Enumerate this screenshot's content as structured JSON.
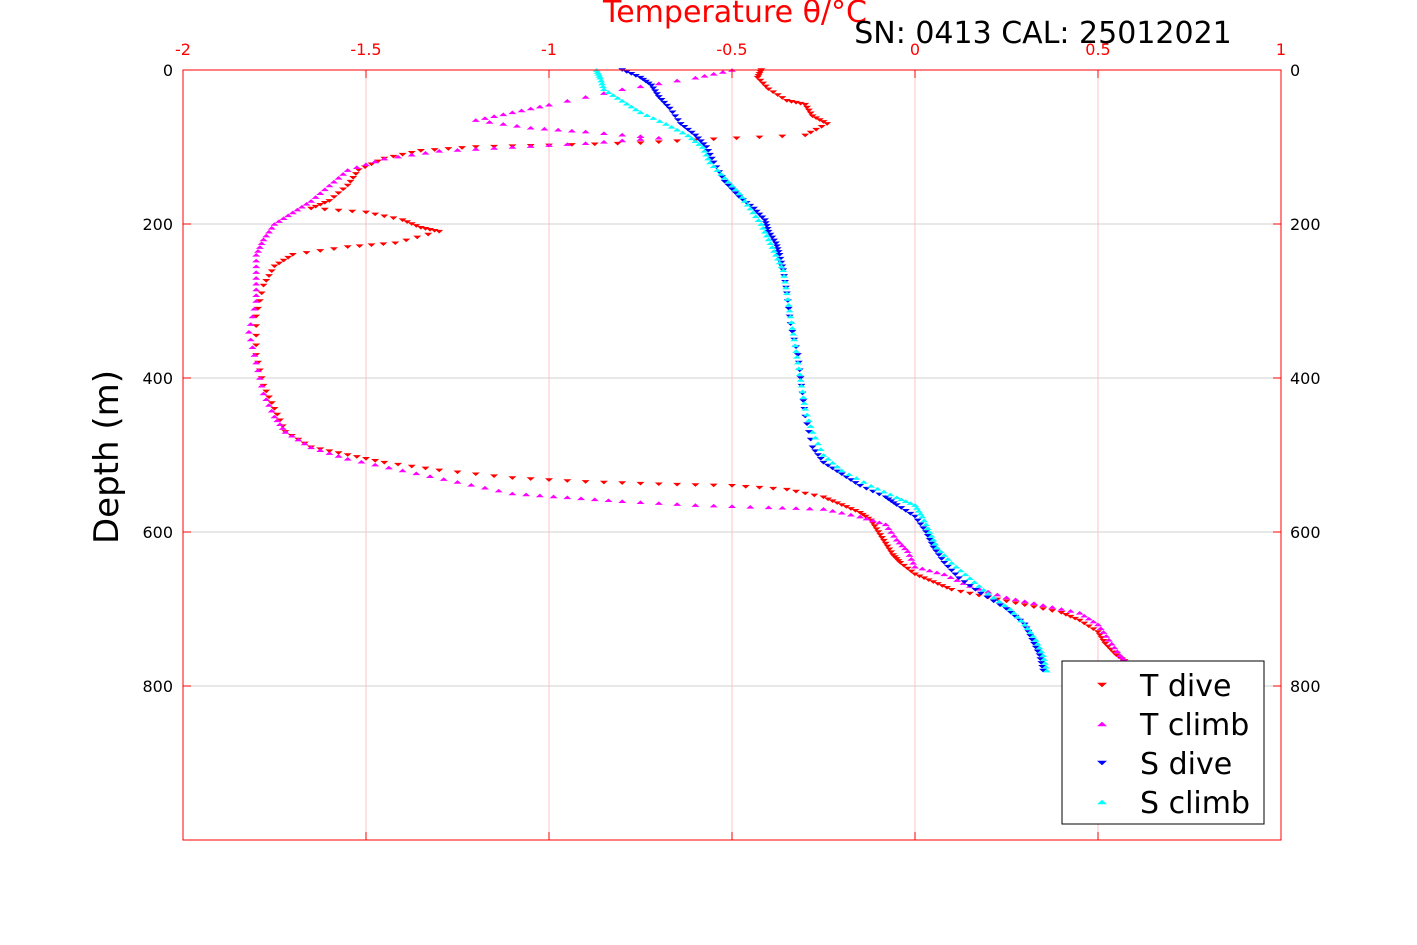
{
  "chart_data": {
    "type": "scatter",
    "title": "Temperature θ/°C",
    "subtitle": "SN: 0413  CAL: 25012021",
    "xlabel": "Temperature θ/°C",
    "ylabel": "Depth (m)",
    "xlim": [
      -2,
      1
    ],
    "ylim": [
      0,
      1000
    ],
    "y_reversed": true,
    "x_axis_position": "top",
    "x_ticks": [
      "-2",
      "-1.5",
      "-1",
      "-0.5",
      "0",
      "0.5",
      "1"
    ],
    "y_ticks": [
      "0",
      "200",
      "400",
      "600",
      "800"
    ],
    "grid": true,
    "legend": "bottom-right",
    "colors": {
      "axes": "#ff0000",
      "grid": "#d0d0d0",
      "grid_x": "#ffc0cb"
    },
    "series": [
      {
        "name": "T dive",
        "marker": "triangle-down",
        "color": "#ff0000",
        "points": [
          [
            -0.42,
            0
          ],
          [
            -0.43,
            10
          ],
          [
            -0.4,
            25
          ],
          [
            -0.35,
            40
          ],
          [
            -0.3,
            45
          ],
          [
            -0.28,
            60
          ],
          [
            -0.24,
            70
          ],
          [
            -0.3,
            85
          ],
          [
            -0.55,
            90
          ],
          [
            -0.75,
            95
          ],
          [
            -1.0,
            98
          ],
          [
            -1.2,
            100
          ],
          [
            -1.35,
            105
          ],
          [
            -1.45,
            115
          ],
          [
            -1.52,
            130
          ],
          [
            -1.55,
            150
          ],
          [
            -1.6,
            170
          ],
          [
            -1.65,
            180
          ],
          [
            -1.5,
            185
          ],
          [
            -1.4,
            195
          ],
          [
            -1.35,
            205
          ],
          [
            -1.3,
            210
          ],
          [
            -1.42,
            225
          ],
          [
            -1.55,
            230
          ],
          [
            -1.7,
            240
          ],
          [
            -1.75,
            255
          ],
          [
            -1.78,
            280
          ],
          [
            -1.8,
            320
          ],
          [
            -1.8,
            370
          ],
          [
            -1.78,
            410
          ],
          [
            -1.75,
            440
          ],
          [
            -1.72,
            470
          ],
          [
            -1.65,
            490
          ],
          [
            -1.55,
            500
          ],
          [
            -1.45,
            510
          ],
          [
            -1.3,
            520
          ],
          [
            -1.1,
            530
          ],
          [
            -0.9,
            535
          ],
          [
            -0.7,
            538
          ],
          [
            -0.5,
            540
          ],
          [
            -0.35,
            545
          ],
          [
            -0.25,
            555
          ],
          [
            -0.2,
            565
          ],
          [
            -0.15,
            575
          ],
          [
            -0.12,
            585
          ],
          [
            -0.1,
            600
          ],
          [
            -0.08,
            615
          ],
          [
            -0.06,
            630
          ],
          [
            -0.04,
            640
          ],
          [
            0.0,
            655
          ],
          [
            0.05,
            665
          ],
          [
            0.1,
            675
          ],
          [
            0.2,
            685
          ],
          [
            0.3,
            695
          ],
          [
            0.4,
            705
          ],
          [
            0.45,
            715
          ],
          [
            0.5,
            730
          ],
          [
            0.52,
            745
          ],
          [
            0.55,
            760
          ],
          [
            0.58,
            770
          ]
        ]
      },
      {
        "name": "T climb",
        "marker": "triangle-up",
        "color": "#ff00ff",
        "points": [
          [
            -0.5,
            0
          ],
          [
            -0.6,
            10
          ],
          [
            -0.8,
            25
          ],
          [
            -1.0,
            45
          ],
          [
            -1.1,
            55
          ],
          [
            -1.2,
            65
          ],
          [
            -1.05,
            75
          ],
          [
            -0.9,
            80
          ],
          [
            -0.7,
            88
          ],
          [
            -0.9,
            95
          ],
          [
            -1.1,
            100
          ],
          [
            -1.3,
            105
          ],
          [
            -1.45,
            115
          ],
          [
            -1.55,
            130
          ],
          [
            -1.6,
            150
          ],
          [
            -1.65,
            170
          ],
          [
            -1.7,
            185
          ],
          [
            -1.75,
            200
          ],
          [
            -1.78,
            220
          ],
          [
            -1.8,
            240
          ],
          [
            -1.8,
            270
          ],
          [
            -1.8,
            300
          ],
          [
            -1.82,
            340
          ],
          [
            -1.8,
            380
          ],
          [
            -1.78,
            420
          ],
          [
            -1.75,
            450
          ],
          [
            -1.72,
            470
          ],
          [
            -1.65,
            490
          ],
          [
            -1.55,
            505
          ],
          [
            -1.4,
            520
          ],
          [
            -1.25,
            535
          ],
          [
            -1.1,
            550
          ],
          [
            -0.95,
            555
          ],
          [
            -0.8,
            560
          ],
          [
            -0.6,
            565
          ],
          [
            -0.4,
            568
          ],
          [
            -0.25,
            570
          ],
          [
            -0.15,
            580
          ],
          [
            -0.08,
            590
          ],
          [
            -0.05,
            610
          ],
          [
            -0.02,
            625
          ],
          [
            0.0,
            645
          ],
          [
            0.08,
            655
          ],
          [
            0.15,
            670
          ],
          [
            0.25,
            685
          ],
          [
            0.35,
            695
          ],
          [
            0.45,
            705
          ],
          [
            0.5,
            720
          ],
          [
            0.53,
            740
          ],
          [
            0.56,
            760
          ],
          [
            0.58,
            770
          ]
        ]
      },
      {
        "name": "S dive",
        "marker": "triangle-down",
        "color": "#0000ff",
        "points": [
          [
            -0.8,
            0
          ],
          [
            -0.75,
            10
          ],
          [
            -0.72,
            20
          ],
          [
            -0.7,
            35
          ],
          [
            -0.67,
            50
          ],
          [
            -0.64,
            70
          ],
          [
            -0.6,
            85
          ],
          [
            -0.57,
            100
          ],
          [
            -0.55,
            120
          ],
          [
            -0.52,
            145
          ],
          [
            -0.48,
            165
          ],
          [
            -0.44,
            180
          ],
          [
            -0.41,
            195
          ],
          [
            -0.4,
            210
          ],
          [
            -0.38,
            225
          ],
          [
            -0.37,
            240
          ],
          [
            -0.36,
            260
          ],
          [
            -0.35,
            290
          ],
          [
            -0.34,
            330
          ],
          [
            -0.32,
            370
          ],
          [
            -0.31,
            410
          ],
          [
            -0.3,
            450
          ],
          [
            -0.28,
            490
          ],
          [
            -0.25,
            510
          ],
          [
            -0.2,
            525
          ],
          [
            -0.15,
            540
          ],
          [
            -0.08,
            555
          ],
          [
            -0.05,
            565
          ],
          [
            0.0,
            580
          ],
          [
            0.03,
            600
          ],
          [
            0.05,
            620
          ],
          [
            0.08,
            640
          ],
          [
            0.12,
            660
          ],
          [
            0.18,
            680
          ],
          [
            0.25,
            700
          ],
          [
            0.3,
            720
          ],
          [
            0.32,
            740
          ],
          [
            0.34,
            760
          ],
          [
            0.35,
            780
          ]
        ]
      },
      {
        "name": "S climb",
        "marker": "triangle-up",
        "color": "#00ffff",
        "points": [
          [
            -0.87,
            0
          ],
          [
            -0.86,
            10
          ],
          [
            -0.85,
            25
          ],
          [
            -0.8,
            40
          ],
          [
            -0.75,
            55
          ],
          [
            -0.68,
            70
          ],
          [
            -0.62,
            85
          ],
          [
            -0.58,
            100
          ],
          [
            -0.56,
            120
          ],
          [
            -0.52,
            140
          ],
          [
            -0.48,
            160
          ],
          [
            -0.45,
            180
          ],
          [
            -0.42,
            200
          ],
          [
            -0.4,
            220
          ],
          [
            -0.38,
            240
          ],
          [
            -0.36,
            260
          ],
          [
            -0.35,
            290
          ],
          [
            -0.34,
            320
          ],
          [
            -0.33,
            350
          ],
          [
            -0.32,
            380
          ],
          [
            -0.31,
            410
          ],
          [
            -0.3,
            440
          ],
          [
            -0.28,
            470
          ],
          [
            -0.25,
            500
          ],
          [
            -0.2,
            520
          ],
          [
            -0.12,
            540
          ],
          [
            -0.05,
            555
          ],
          [
            0.0,
            565
          ],
          [
            0.02,
            580
          ],
          [
            0.04,
            600
          ],
          [
            0.06,
            620
          ],
          [
            0.1,
            640
          ],
          [
            0.15,
            660
          ],
          [
            0.2,
            680
          ],
          [
            0.26,
            700
          ],
          [
            0.3,
            720
          ],
          [
            0.33,
            740
          ],
          [
            0.35,
            760
          ],
          [
            0.36,
            780
          ]
        ]
      }
    ]
  }
}
